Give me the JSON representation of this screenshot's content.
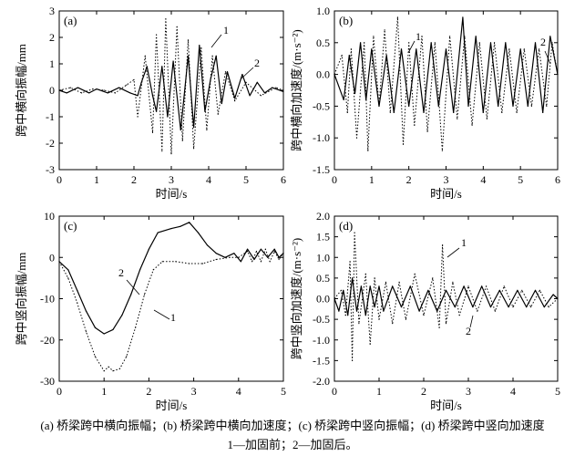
{
  "caption": {
    "line1": "(a) 桥梁跨中横向振幅；(b) 桥梁跨中横向加速度；(c) 桥梁跨中竖向振幅；(d) 桥梁跨中竖向加速度",
    "line2": "1—加固前；2—加固后。"
  },
  "chart_data": [
    {
      "panel": "(a)",
      "type": "line",
      "xlabel": "时间/s",
      "ylabel": "跨中横向振幅/mm",
      "xlim": [
        0,
        6
      ],
      "ylim": [
        -3,
        3
      ],
      "xticks": [
        0,
        1,
        2,
        3,
        4,
        5,
        6
      ],
      "yticks": [
        -3,
        -2,
        -1,
        0,
        1,
        2,
        3
      ],
      "annotations": [
        "1",
        "2"
      ],
      "series": [
        {
          "label": "1",
          "style": "dotted",
          "points": [
            [
              0,
              0
            ],
            [
              0.3,
              0.1
            ],
            [
              0.6,
              -0.1
            ],
            [
              0.9,
              0.05
            ],
            [
              1.2,
              0
            ],
            [
              1.5,
              -0.1
            ],
            [
              1.8,
              0.2
            ],
            [
              2.0,
              0.4
            ],
            [
              2.1,
              -1.0
            ],
            [
              2.3,
              1.3
            ],
            [
              2.5,
              -1.6
            ],
            [
              2.6,
              2.1
            ],
            [
              2.75,
              -2.3
            ],
            [
              2.85,
              2.7
            ],
            [
              3.0,
              -2.4
            ],
            [
              3.15,
              2.4
            ],
            [
              3.3,
              -1.9
            ],
            [
              3.45,
              1.9
            ],
            [
              3.6,
              -2.2
            ],
            [
              3.8,
              1.6
            ],
            [
              3.95,
              -1.5
            ],
            [
              4.1,
              1.3
            ],
            [
              4.25,
              -0.9
            ],
            [
              4.45,
              0.7
            ],
            [
              4.7,
              -0.4
            ],
            [
              5.0,
              0.3
            ],
            [
              5.4,
              -0.2
            ],
            [
              5.8,
              0.1
            ],
            [
              6.0,
              0
            ]
          ]
        },
        {
          "label": "2",
          "style": "solid",
          "points": [
            [
              0,
              0
            ],
            [
              0.2,
              -0.1
            ],
            [
              0.5,
              0.1
            ],
            [
              0.8,
              -0.1
            ],
            [
              1.0,
              0.05
            ],
            [
              1.3,
              -0.1
            ],
            [
              1.6,
              0.1
            ],
            [
              1.9,
              -0.1
            ],
            [
              2.1,
              -0.2
            ],
            [
              2.2,
              0.3
            ],
            [
              2.35,
              0.9
            ],
            [
              2.5,
              -0.2
            ],
            [
              2.6,
              -0.8
            ],
            [
              2.75,
              0.9
            ],
            [
              2.9,
              -1.0
            ],
            [
              3.05,
              1.1
            ],
            [
              3.25,
              -1.5
            ],
            [
              3.45,
              1.3
            ],
            [
              3.6,
              -1.4
            ],
            [
              3.75,
              1.7
            ],
            [
              3.9,
              -0.8
            ],
            [
              4.05,
              0.4
            ],
            [
              4.2,
              1.3
            ],
            [
              4.35,
              -0.5
            ],
            [
              4.5,
              0.7
            ],
            [
              4.7,
              -0.3
            ],
            [
              4.9,
              0.6
            ],
            [
              5.1,
              -0.2
            ],
            [
              5.3,
              0.3
            ],
            [
              5.5,
              -0.1
            ],
            [
              5.7,
              0.1
            ],
            [
              6.0,
              -0.05
            ]
          ]
        }
      ]
    },
    {
      "panel": "(b)",
      "type": "line",
      "xlabel": "时间/s",
      "ylabel": "跨中横向加速度/(m·s⁻²)",
      "xlim": [
        0,
        6
      ],
      "ylim": [
        -1.5,
        1.0
      ],
      "xticks": [
        0,
        1,
        2,
        3,
        4,
        5,
        6
      ],
      "yticks": [
        -1.5,
        -1.0,
        -0.5,
        0,
        0.5,
        1.0
      ],
      "annotations": [
        "1",
        "2"
      ],
      "series": [
        {
          "label": "1",
          "style": "dotted",
          "points": [
            [
              0,
              0
            ],
            [
              0.2,
              0.3
            ],
            [
              0.35,
              -0.6
            ],
            [
              0.45,
              0.4
            ],
            [
              0.6,
              -1.0
            ],
            [
              0.8,
              0.5
            ],
            [
              0.9,
              -1.2
            ],
            [
              1.05,
              0.6
            ],
            [
              1.2,
              -0.5
            ],
            [
              1.35,
              0.7
            ],
            [
              1.5,
              -0.6
            ],
            [
              1.7,
              0.9
            ],
            [
              1.85,
              -1.1
            ],
            [
              2.0,
              0.5
            ],
            [
              2.15,
              -0.8
            ],
            [
              2.35,
              0.6
            ],
            [
              2.5,
              -0.9
            ],
            [
              2.7,
              0.5
            ],
            [
              2.9,
              -1.2
            ],
            [
              3.1,
              0.6
            ],
            [
              3.3,
              -0.7
            ],
            [
              3.5,
              0.6
            ],
            [
              3.7,
              -0.8
            ],
            [
              3.9,
              0.5
            ],
            [
              4.1,
              -0.7
            ],
            [
              4.3,
              0.5
            ],
            [
              4.5,
              -0.6
            ],
            [
              4.7,
              0.4
            ],
            [
              4.9,
              -0.6
            ],
            [
              5.1,
              0.4
            ],
            [
              5.3,
              -0.5
            ],
            [
              5.5,
              0.4
            ],
            [
              5.7,
              -0.5
            ],
            [
              5.85,
              0.5
            ],
            [
              6.0,
              0
            ]
          ]
        },
        {
          "label": "2",
          "style": "solid",
          "points": [
            [
              0,
              0
            ],
            [
              0.25,
              -0.4
            ],
            [
              0.4,
              0.3
            ],
            [
              0.55,
              -0.3
            ],
            [
              0.7,
              0.5
            ],
            [
              0.85,
              -0.4
            ],
            [
              1.0,
              0.4
            ],
            [
              1.2,
              -0.5
            ],
            [
              1.4,
              0.3
            ],
            [
              1.6,
              -0.6
            ],
            [
              1.8,
              0.4
            ],
            [
              2.0,
              -0.5
            ],
            [
              2.2,
              0.4
            ],
            [
              2.4,
              -0.6
            ],
            [
              2.6,
              0.5
            ],
            [
              2.8,
              -0.5
            ],
            [
              3.0,
              0.4
            ],
            [
              3.2,
              -0.6
            ],
            [
              3.45,
              0.9
            ],
            [
              3.6,
              -0.5
            ],
            [
              3.8,
              0.6
            ],
            [
              4.0,
              -0.6
            ],
            [
              4.2,
              0.5
            ],
            [
              4.4,
              -0.5
            ],
            [
              4.6,
              0.5
            ],
            [
              4.8,
              -0.5
            ],
            [
              5.0,
              0.4
            ],
            [
              5.2,
              -0.5
            ],
            [
              5.4,
              0.5
            ],
            [
              5.6,
              -0.6
            ],
            [
              5.8,
              0.6
            ],
            [
              6.0,
              0
            ]
          ]
        }
      ]
    },
    {
      "panel": "(c)",
      "type": "line",
      "xlabel": "时间/s",
      "ylabel": "跨中竖向振幅/mm",
      "xlim": [
        0,
        5
      ],
      "ylim": [
        -30,
        10
      ],
      "xticks": [
        0,
        1,
        2,
        3,
        4,
        5
      ],
      "yticks": [
        -30,
        -20,
        -10,
        0,
        10
      ],
      "annotations": [
        "1",
        "2"
      ],
      "series": [
        {
          "label": "1",
          "style": "dotted",
          "points": [
            [
              0,
              -1
            ],
            [
              0.2,
              -5
            ],
            [
              0.4,
              -11
            ],
            [
              0.6,
              -18
            ],
            [
              0.8,
              -24
            ],
            [
              1.0,
              -27.5
            ],
            [
              1.1,
              -26.5
            ],
            [
              1.2,
              -27.5
            ],
            [
              1.35,
              -27
            ],
            [
              1.5,
              -24
            ],
            [
              1.7,
              -17
            ],
            [
              1.9,
              -9
            ],
            [
              2.1,
              -3
            ],
            [
              2.3,
              -1
            ],
            [
              2.6,
              -1
            ],
            [
              2.9,
              -1.5
            ],
            [
              3.2,
              -1.5
            ],
            [
              3.5,
              -0.5
            ],
            [
              3.8,
              0
            ],
            [
              4.0,
              0
            ],
            [
              4.2,
              1.5
            ],
            [
              4.3,
              -1
            ],
            [
              4.4,
              1.5
            ],
            [
              4.5,
              -1
            ],
            [
              4.6,
              2
            ],
            [
              4.7,
              -1
            ],
            [
              4.8,
              1.5
            ],
            [
              4.9,
              -0.5
            ],
            [
              5.0,
              1
            ]
          ]
        },
        {
          "label": "2",
          "style": "solid",
          "points": [
            [
              0,
              -1
            ],
            [
              0.2,
              -3
            ],
            [
              0.4,
              -8
            ],
            [
              0.6,
              -13
            ],
            [
              0.8,
              -17
            ],
            [
              1.0,
              -18.5
            ],
            [
              1.2,
              -17.5
            ],
            [
              1.4,
              -14
            ],
            [
              1.6,
              -9
            ],
            [
              1.8,
              -3
            ],
            [
              2.0,
              2
            ],
            [
              2.2,
              6
            ],
            [
              2.5,
              7
            ],
            [
              2.7,
              7.5
            ],
            [
              2.9,
              8.5
            ],
            [
              3.1,
              6
            ],
            [
              3.3,
              3
            ],
            [
              3.5,
              1
            ],
            [
              3.7,
              0
            ],
            [
              3.9,
              1
            ],
            [
              4.05,
              -1
            ],
            [
              4.2,
              2
            ],
            [
              4.35,
              -0.5
            ],
            [
              4.5,
              2
            ],
            [
              4.65,
              0
            ],
            [
              4.8,
              2
            ],
            [
              4.9,
              0
            ],
            [
              5.0,
              1
            ]
          ]
        }
      ]
    },
    {
      "panel": "(d)",
      "type": "line",
      "xlabel": "时间/s",
      "ylabel": "跨中竖向加速度/(m·s⁻²)",
      "xlim": [
        0,
        5
      ],
      "ylim": [
        -2.0,
        2.0
      ],
      "xticks": [
        0,
        1,
        2,
        3,
        4,
        5
      ],
      "yticks": [
        -2.0,
        -1.5,
        -1.0,
        -0.5,
        0,
        0.5,
        1.0,
        1.5,
        2.0
      ],
      "annotations": [
        "1",
        "2"
      ],
      "series": [
        {
          "label": "1",
          "style": "dotted",
          "points": [
            [
              0,
              0
            ],
            [
              0.15,
              0.2
            ],
            [
              0.25,
              -0.4
            ],
            [
              0.35,
              0.9
            ],
            [
              0.4,
              -1.5
            ],
            [
              0.45,
              1.6
            ],
            [
              0.55,
              -0.6
            ],
            [
              0.7,
              0.6
            ],
            [
              0.8,
              -1.1
            ],
            [
              0.9,
              0.5
            ],
            [
              1.0,
              -0.5
            ],
            [
              1.15,
              0.4
            ],
            [
              1.3,
              -0.6
            ],
            [
              1.45,
              0.4
            ],
            [
              1.6,
              -0.5
            ],
            [
              1.8,
              0.6
            ],
            [
              2.0,
              -0.4
            ],
            [
              2.2,
              0.5
            ],
            [
              2.35,
              -0.7
            ],
            [
              2.42,
              1.3
            ],
            [
              2.5,
              -0.6
            ],
            [
              2.65,
              0.4
            ],
            [
              2.8,
              -0.4
            ],
            [
              3.0,
              0.3
            ],
            [
              3.2,
              -0.3
            ],
            [
              3.4,
              0.3
            ],
            [
              3.6,
              -0.3
            ],
            [
              3.8,
              0.3
            ],
            [
              4.0,
              -0.2
            ],
            [
              4.2,
              0.2
            ],
            [
              4.4,
              -0.2
            ],
            [
              4.6,
              0.2
            ],
            [
              4.8,
              -0.2
            ],
            [
              5.0,
              0
            ]
          ]
        },
        {
          "label": "2",
          "style": "solid",
          "points": [
            [
              0,
              0
            ],
            [
              0.1,
              -0.3
            ],
            [
              0.2,
              0.2
            ],
            [
              0.3,
              -0.4
            ],
            [
              0.4,
              0.5
            ],
            [
              0.5,
              -0.3
            ],
            [
              0.6,
              0.3
            ],
            [
              0.7,
              -0.4
            ],
            [
              0.8,
              0.3
            ],
            [
              0.9,
              -0.2
            ],
            [
              1.0,
              0.3
            ],
            [
              1.1,
              -0.3
            ],
            [
              1.3,
              0.3
            ],
            [
              1.5,
              -0.2
            ],
            [
              1.7,
              0.3
            ],
            [
              1.9,
              -0.3
            ],
            [
              2.1,
              0.2
            ],
            [
              2.3,
              -0.3
            ],
            [
              2.5,
              0.2
            ],
            [
              2.7,
              -0.2
            ],
            [
              2.9,
              0.3
            ],
            [
              3.1,
              -0.2
            ],
            [
              3.3,
              0.3
            ],
            [
              3.5,
              -0.2
            ],
            [
              3.7,
              0.2
            ],
            [
              3.9,
              -0.2
            ],
            [
              4.1,
              0.2
            ],
            [
              4.3,
              -0.2
            ],
            [
              4.5,
              0.2
            ],
            [
              4.7,
              -0.2
            ],
            [
              4.9,
              0.1
            ],
            [
              5.0,
              0
            ]
          ]
        }
      ]
    }
  ]
}
